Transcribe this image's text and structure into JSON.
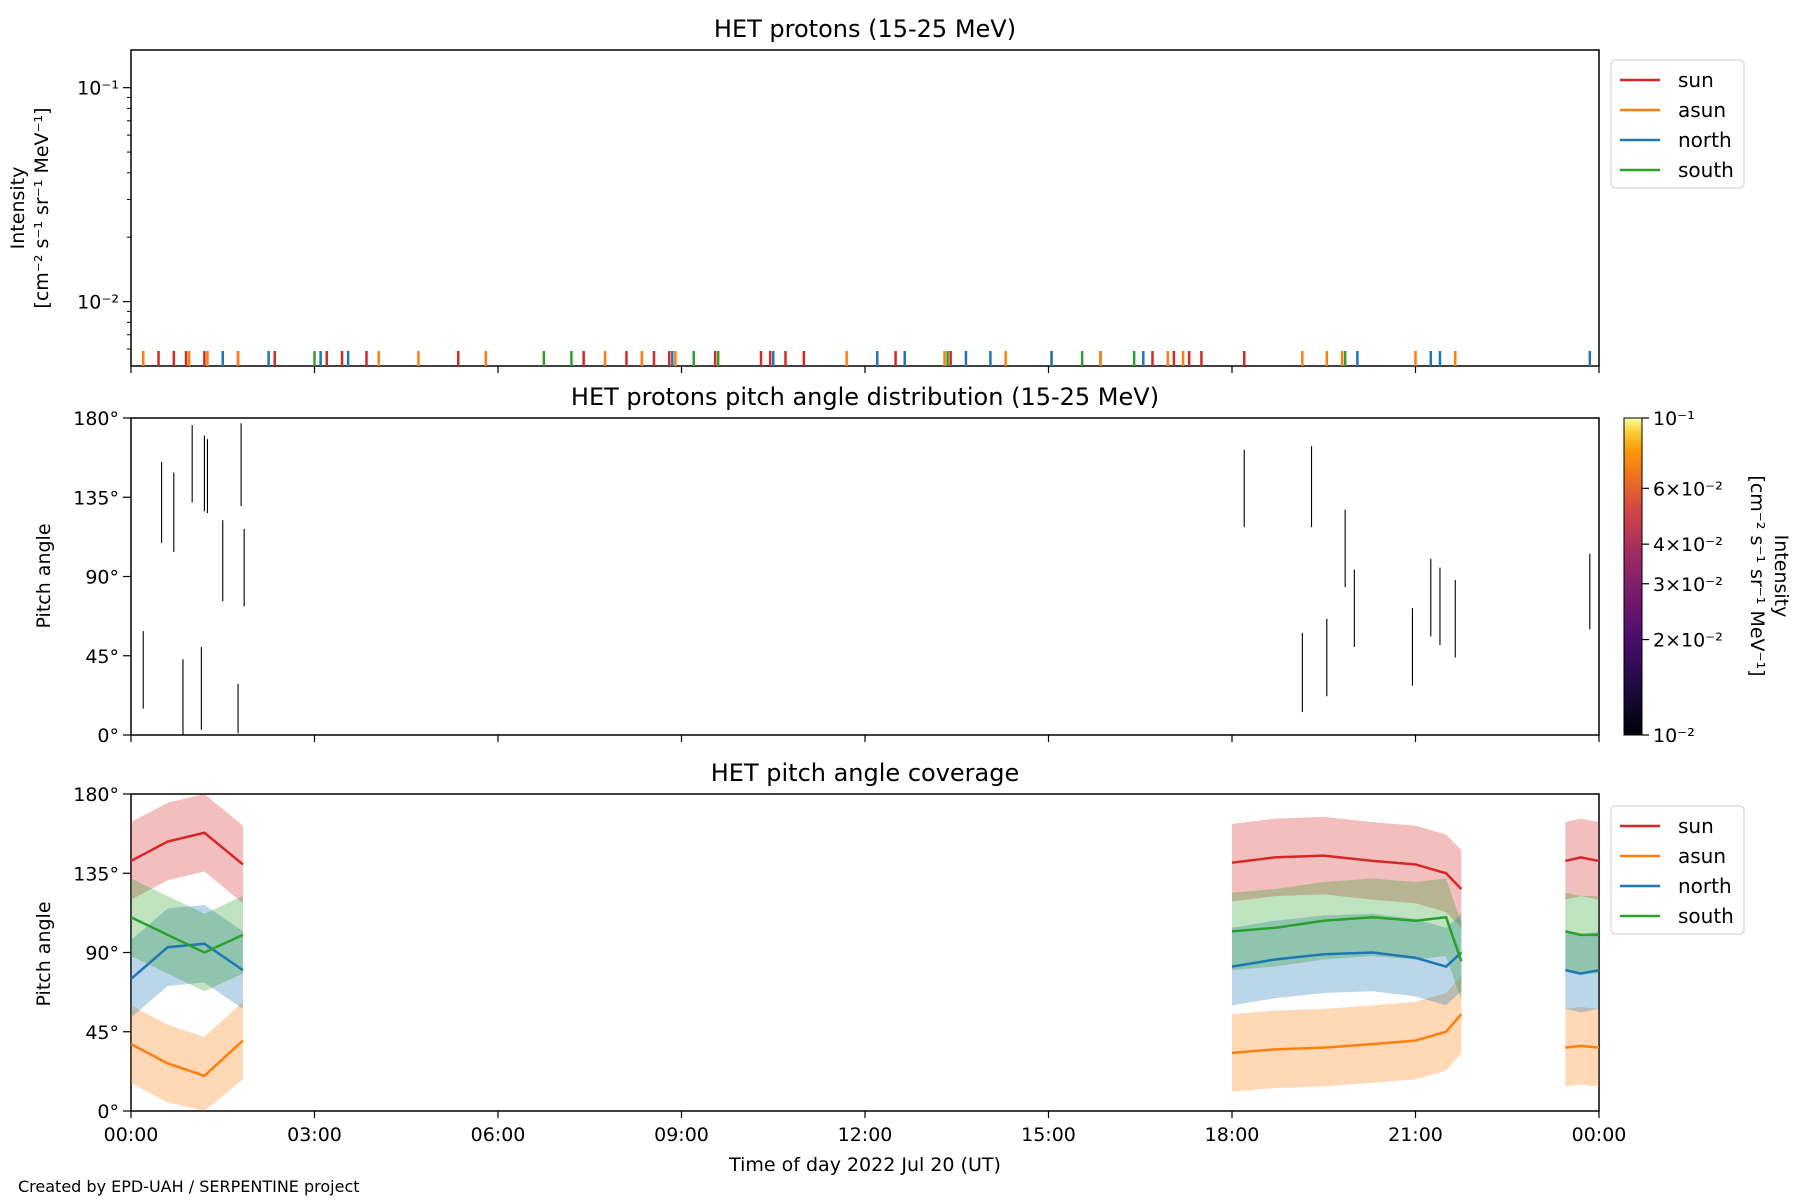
{
  "footer": "Created by EPD-UAH / SERPENTINE project",
  "colors": {
    "sun": "#d62728",
    "asun": "#ff7f0e",
    "north": "#1f77b4",
    "south": "#2ca02c"
  },
  "chart_data": [
    {
      "type": "line",
      "title": "HET protons (15-25 MeV)",
      "ylabel": "Intensity",
      "ylabel_unit": "[cm⁻² s⁻¹ sr⁻¹ MeV⁻¹]",
      "yscale": "log",
      "ylim": [
        0.005,
        0.15
      ],
      "yticks": [
        {
          "value": 0.1,
          "label": "10⁻¹"
        },
        {
          "value": 0.01,
          "label": "10⁻²"
        }
      ],
      "xlim": [
        0,
        24
      ],
      "legend": {
        "position": "top-right",
        "entries": [
          "sun",
          "asun",
          "north",
          "south"
        ]
      },
      "series": [
        {
          "name": "sun",
          "color_key": "sun",
          "x": [
            0.45,
            0.7,
            0.9,
            1.2,
            1.75,
            2.35,
            3.2,
            3.45,
            3.85,
            5.35,
            7.4,
            8.1,
            8.55,
            8.8,
            9.55,
            10.3,
            10.45,
            10.7,
            11.0,
            12.5,
            13.4,
            15.85,
            16.7,
            17.05,
            17.3,
            17.5,
            18.2
          ]
        },
        {
          "name": "asun",
          "color_key": "asun",
          "x": [
            0.2,
            0.95,
            1.25,
            1.75,
            4.05,
            4.7,
            5.8,
            7.75,
            8.35,
            8.9,
            11.7,
            13.3,
            14.3,
            15.05,
            15.85,
            16.95,
            17.2,
            19.15,
            19.55,
            19.8,
            21.0,
            21.65
          ]
        },
        {
          "name": "north",
          "color_key": "north",
          "x": [
            1.5,
            2.25,
            3.1,
            3.55,
            8.85,
            10.5,
            12.2,
            12.65,
            13.65,
            14.05,
            15.05,
            16.55,
            20.05,
            21.25,
            21.4,
            23.85
          ]
        },
        {
          "name": "south",
          "color_key": "south",
          "x": [
            3.0,
            6.75,
            7.2,
            9.2,
            9.6,
            13.35,
            15.55,
            16.4,
            19.85
          ]
        }
      ]
    },
    {
      "type": "heatmap",
      "title": "HET protons pitch angle distribution (15-25 MeV)",
      "ylabel": "Pitch angle",
      "ylim": [
        0,
        180
      ],
      "yticks": [
        "0°",
        "45°",
        "90°",
        "135°",
        "180°"
      ],
      "colorbar": {
        "label": "Intensity",
        "label_unit": "[cm⁻² s⁻¹ sr⁻¹ MeV⁻¹]",
        "scale": "log",
        "range": [
          0.01,
          0.1
        ],
        "ticks": [
          {
            "value": 0.1,
            "label": "10⁻¹"
          },
          {
            "value": 0.06,
            "label": "6×10⁻²"
          },
          {
            "value": 0.04,
            "label": "4×10⁻²"
          },
          {
            "value": 0.03,
            "label": "3×10⁻²"
          },
          {
            "value": 0.02,
            "label": "2×10⁻²"
          },
          {
            "value": 0.01,
            "label": "10⁻²"
          }
        ]
      },
      "segments": [
        {
          "x": 0.2,
          "y0": 15,
          "y1": 59
        },
        {
          "x": 0.5,
          "y0": 109,
          "y1": 155
        },
        {
          "x": 0.7,
          "y0": 104,
          "y1": 149
        },
        {
          "x": 0.85,
          "y0": 0,
          "y1": 43
        },
        {
          "x": 1.0,
          "y0": 132,
          "y1": 176
        },
        {
          "x": 1.15,
          "y0": 3,
          "y1": 50
        },
        {
          "x": 1.2,
          "y0": 127,
          "y1": 170
        },
        {
          "x": 1.25,
          "y0": 126,
          "y1": 168
        },
        {
          "x": 1.5,
          "y0": 76,
          "y1": 122
        },
        {
          "x": 1.75,
          "y0": 1,
          "y1": 29
        },
        {
          "x": 1.8,
          "y0": 130,
          "y1": 177
        },
        {
          "x": 1.85,
          "y0": 73,
          "y1": 117
        },
        {
          "x": 18.2,
          "y0": 118,
          "y1": 162
        },
        {
          "x": 19.15,
          "y0": 13,
          "y1": 58
        },
        {
          "x": 19.3,
          "y0": 118,
          "y1": 164
        },
        {
          "x": 19.55,
          "y0": 22,
          "y1": 66
        },
        {
          "x": 19.85,
          "y0": 84,
          "y1": 128
        },
        {
          "x": 20.0,
          "y0": 50,
          "y1": 94
        },
        {
          "x": 20.95,
          "y0": 28,
          "y1": 72
        },
        {
          "x": 21.25,
          "y0": 56,
          "y1": 100
        },
        {
          "x": 21.4,
          "y0": 51,
          "y1": 95
        },
        {
          "x": 21.65,
          "y0": 44,
          "y1": 88
        },
        {
          "x": 23.85,
          "y0": 60,
          "y1": 103
        }
      ]
    },
    {
      "type": "area",
      "title": "HET pitch angle coverage",
      "ylabel": "Pitch angle",
      "xlabel": "Time of day 2022 Jul 20 (UT)",
      "ylim": [
        0,
        180
      ],
      "yticks": [
        "0°",
        "45°",
        "90°",
        "135°",
        "180°"
      ],
      "xlim": [
        0,
        24
      ],
      "xticks": [
        {
          "value": 0,
          "label": "00:00"
        },
        {
          "value": 3,
          "label": "03:00"
        },
        {
          "value": 6,
          "label": "06:00"
        },
        {
          "value": 9,
          "label": "09:00"
        },
        {
          "value": 12,
          "label": "12:00"
        },
        {
          "value": 15,
          "label": "15:00"
        },
        {
          "value": 18,
          "label": "18:00"
        },
        {
          "value": 21,
          "label": "21:00"
        },
        {
          "value": 24,
          "label": "00:00"
        }
      ],
      "legend": {
        "position": "top-right",
        "entries": [
          "sun",
          "asun",
          "north",
          "south"
        ]
      },
      "band_halfwidth": 22,
      "segments_x": [
        [
          0,
          1.83
        ],
        [
          18,
          21.75
        ],
        [
          23.45,
          24
        ]
      ],
      "series": [
        {
          "name": "sun",
          "color_key": "sun",
          "y": [
            142,
            153,
            158,
            140,
            141,
            144,
            145,
            142,
            140,
            135,
            126,
            142,
            144,
            142
          ]
        },
        {
          "name": "asun",
          "color_key": "asun",
          "y": [
            38,
            27,
            20,
            40,
            33,
            35,
            36,
            38,
            40,
            45,
            55,
            36,
            37,
            36
          ]
        },
        {
          "name": "north",
          "color_key": "north",
          "y": [
            75,
            93,
            95,
            80,
            82,
            86,
            89,
            90,
            87,
            82,
            90,
            80,
            78,
            80
          ]
        },
        {
          "name": "south",
          "color_key": "south",
          "y": [
            110,
            100,
            90,
            100,
            102,
            104,
            108,
            110,
            108,
            110,
            85,
            102,
            100,
            100
          ]
        }
      ],
      "series_x": [
        [
          0,
          0.6,
          1.2,
          1.83
        ],
        [
          18,
          18.7,
          19.5,
          20.3,
          21.0,
          21.5,
          21.75
        ],
        [
          23.45,
          23.7,
          24
        ]
      ]
    }
  ]
}
